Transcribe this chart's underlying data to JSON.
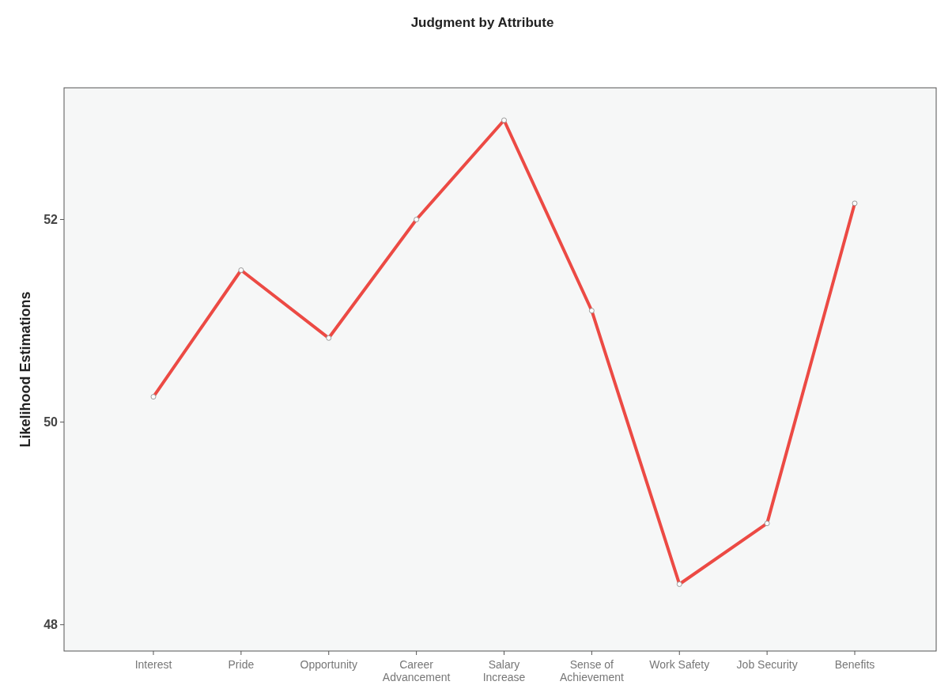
{
  "chart_data": {
    "type": "line",
    "title": "Judgment by Attribute",
    "ylabel": "Likelihood Estimations",
    "categories": [
      "Interest",
      "Pride",
      "Opportunity",
      "Career\nAdvancement",
      "Salary\nIncrease",
      "Sense of\nAchievement",
      "Work Safety",
      "Job Security",
      "Benefits"
    ],
    "series": [
      {
        "color": "#ec4a44",
        "values": [
          50.25,
          51.5,
          50.83,
          52.0,
          52.98,
          51.1,
          48.4,
          49.0,
          52.16
        ]
      }
    ],
    "ylim": [
      47.74,
      53.3
    ],
    "yticks": [
      48,
      50,
      52
    ],
    "grid": false,
    "marker": "circle",
    "line_style": "solid"
  }
}
